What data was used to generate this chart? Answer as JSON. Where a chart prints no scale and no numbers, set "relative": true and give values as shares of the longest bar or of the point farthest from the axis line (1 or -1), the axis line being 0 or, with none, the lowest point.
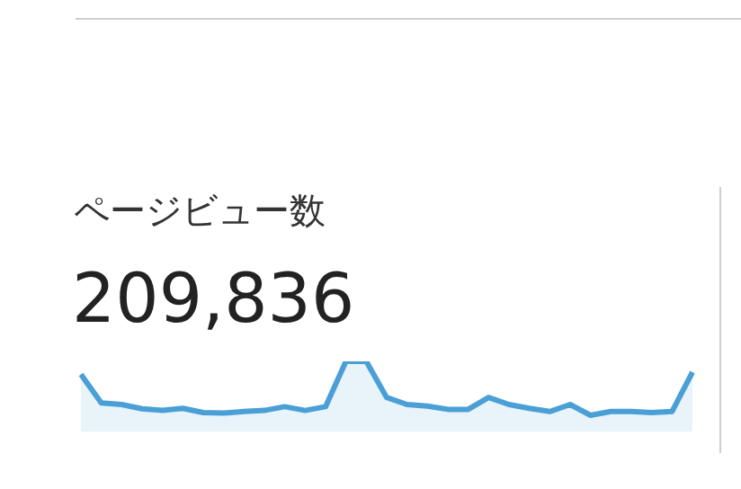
{
  "chart_data": {
    "type": "area",
    "title": "ページビュー数",
    "annotations": [
      "209,836"
    ],
    "relative": true,
    "color": "#4a9fd6",
    "categories": [
      null,
      null,
      null,
      null,
      null,
      null,
      null,
      null,
      null,
      null,
      null,
      null,
      null,
      null,
      null,
      null,
      null,
      null,
      null,
      null,
      null,
      null,
      null,
      null,
      null,
      null,
      null,
      null,
      null,
      null,
      null
    ],
    "values": [
      0.76,
      0.23,
      0.2,
      0.12,
      0.09,
      0.13,
      0.05,
      0.04,
      0.07,
      0.09,
      0.16,
      0.09,
      0.16,
      1,
      1,
      0.33,
      0.2,
      0.17,
      0.11,
      0.11,
      0.33,
      0.2,
      0.13,
      0.07,
      0.2,
      0,
      0.07,
      0.07,
      0.05,
      0.07,
      0.8
    ]
  }
}
